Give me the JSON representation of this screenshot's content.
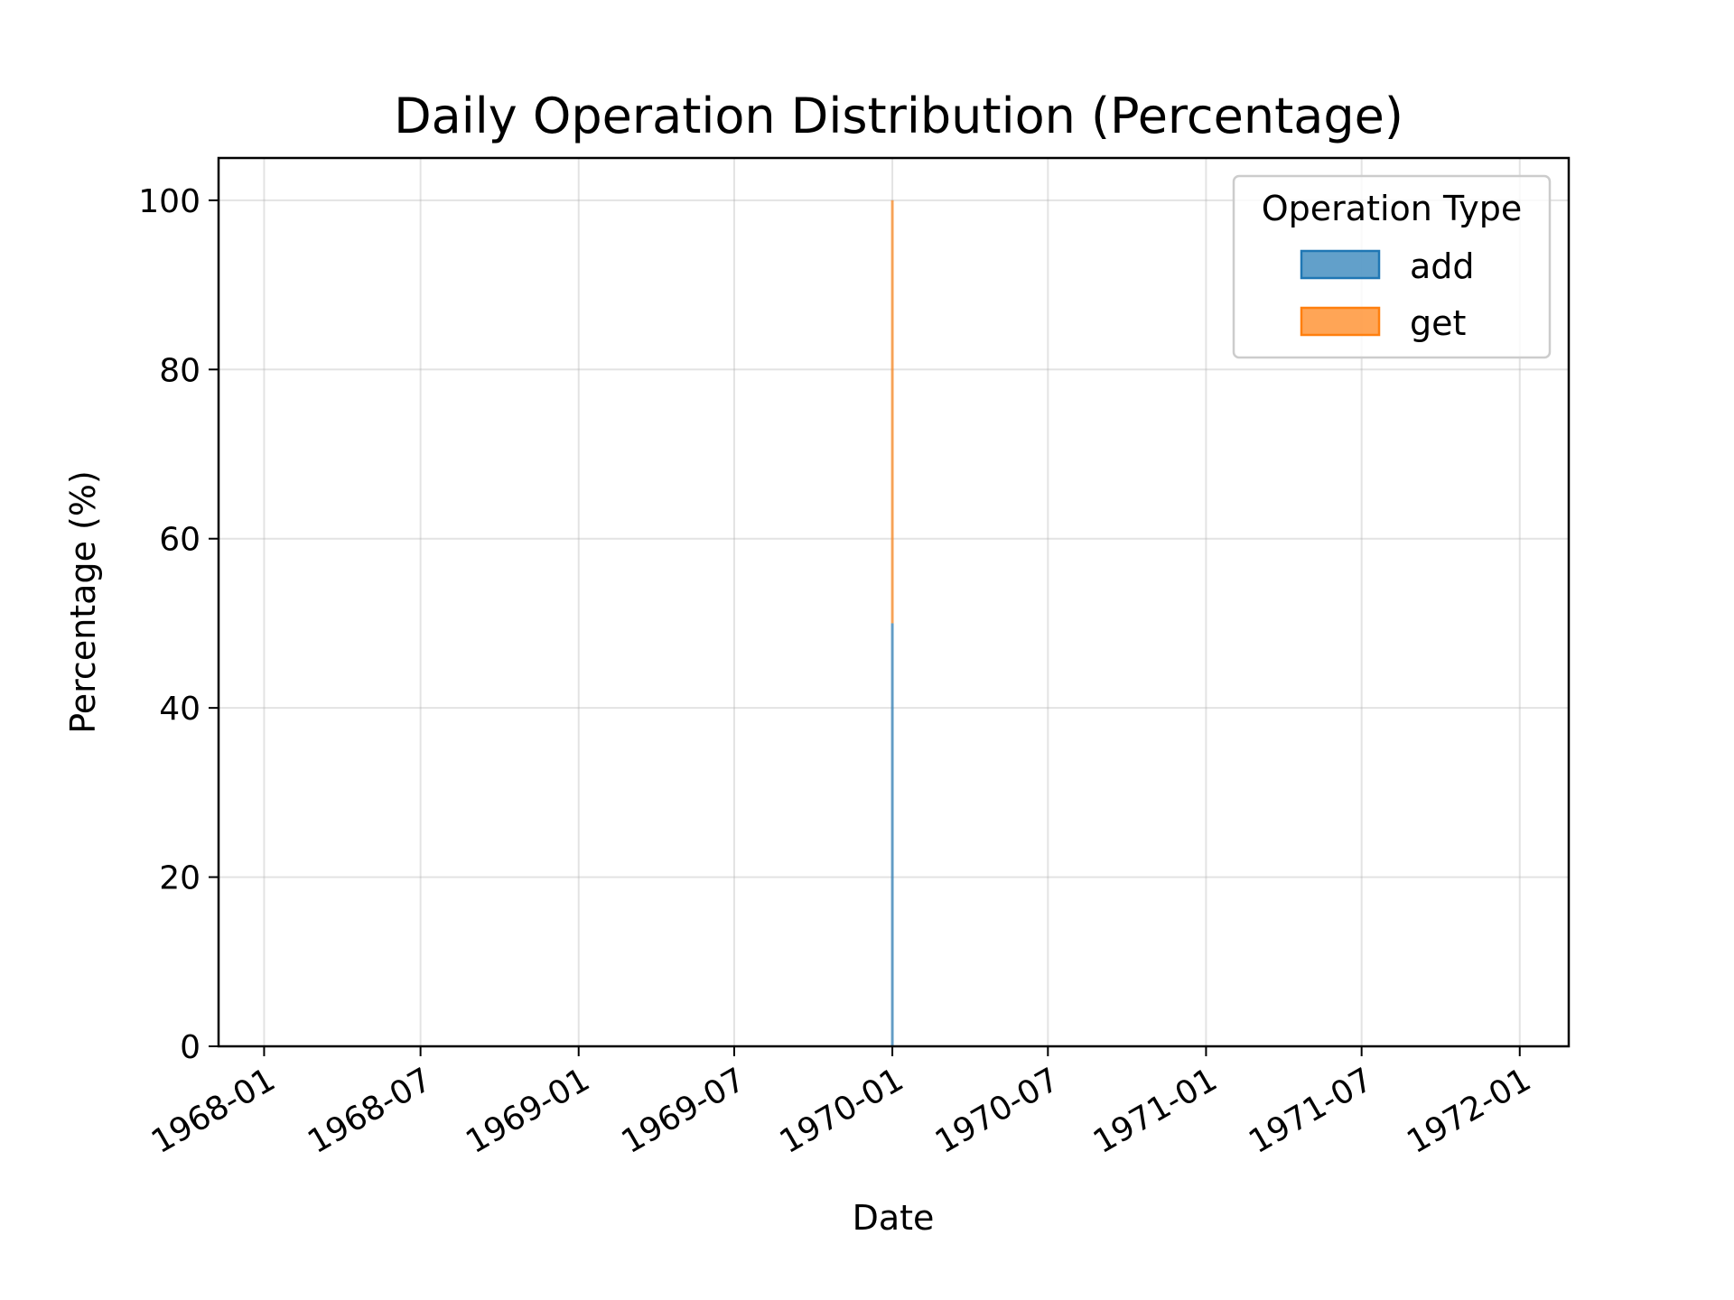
{
  "chart_data": {
    "type": "area",
    "stacked": true,
    "title": "Daily Operation Distribution (Percentage)",
    "xlabel": "Date",
    "ylabel": "Percentage (%)",
    "x_axis_type": "date",
    "xlim": [
      "1967-11-09",
      "1972-02-27"
    ],
    "ylim": [
      0,
      105
    ],
    "x_ticks": [
      "1968-01",
      "1968-07",
      "1969-01",
      "1969-07",
      "1970-01",
      "1970-07",
      "1971-01",
      "1971-07",
      "1972-01"
    ],
    "y_ticks": [
      0,
      20,
      40,
      60,
      80,
      100
    ],
    "grid": true,
    "legend": {
      "title": "Operation Type",
      "position": "top-right"
    },
    "x": [
      "1970-01-01"
    ],
    "series": [
      {
        "name": "add",
        "values": [
          50
        ],
        "color": "#1f77b4"
      },
      {
        "name": "get",
        "values": [
          50
        ],
        "color": "#ff7f0e"
      }
    ]
  }
}
